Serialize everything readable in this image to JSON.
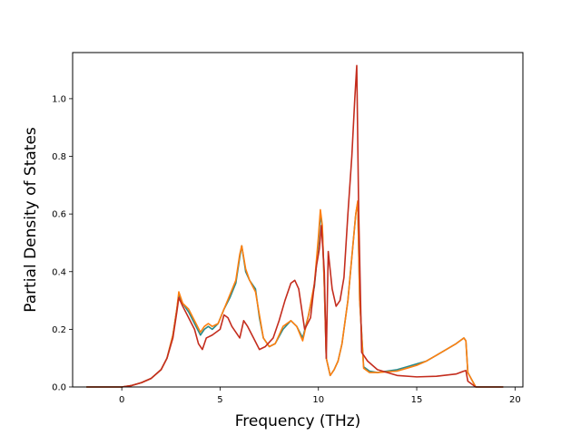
{
  "chart_data": {
    "type": "line",
    "title": "",
    "xlabel": "Frequency (THz)",
    "ylabel": "Partial Density of States",
    "xlim": [
      -2.5,
      20.4
    ],
    "ylim": [
      0.0,
      1.16
    ],
    "xticks": [
      0,
      5,
      10,
      15,
      20
    ],
    "yticks": [
      0.0,
      0.2,
      0.4,
      0.6,
      0.8,
      1.0
    ],
    "xtick_labels": [
      "0",
      "5",
      "10",
      "15",
      "20"
    ],
    "ytick_labels": [
      "0.0",
      "0.2",
      "0.4",
      "0.6",
      "0.8",
      "1.0"
    ],
    "grid": false,
    "legend": "none",
    "series": [
      {
        "color": "#2a8a8a",
        "x": [
          -1.8,
          0,
          0.5,
          1,
          1.5,
          2,
          2.3,
          2.6,
          2.8,
          2.9,
          3.1,
          3.4,
          3.7,
          4.0,
          4.2,
          4.4,
          4.6,
          4.9,
          5.2,
          5.5,
          5.8,
          6.0,
          6.1,
          6.3,
          6.5,
          6.8,
          7.0,
          7.2,
          7.5,
          7.8,
          8.2,
          8.6,
          8.9,
          9.2,
          9.5,
          9.8,
          10.0,
          10.1,
          10.2,
          10.3,
          10.4,
          10.6,
          10.8,
          11.0,
          11.2,
          11.5,
          11.7,
          11.9,
          12.0,
          12.1,
          12.3,
          12.6,
          13,
          14,
          14.5,
          15,
          15.5,
          16,
          16.5,
          17,
          17.4,
          17.5,
          17.6,
          18,
          19.4
        ],
        "y": [
          0,
          0,
          0.005,
          0.015,
          0.03,
          0.06,
          0.1,
          0.18,
          0.27,
          0.32,
          0.29,
          0.26,
          0.22,
          0.18,
          0.2,
          0.21,
          0.2,
          0.22,
          0.27,
          0.31,
          0.36,
          0.45,
          0.49,
          0.4,
          0.37,
          0.34,
          0.24,
          0.17,
          0.14,
          0.15,
          0.2,
          0.23,
          0.21,
          0.17,
          0.25,
          0.35,
          0.5,
          0.6,
          0.55,
          0.35,
          0.1,
          0.04,
          0.06,
          0.09,
          0.15,
          0.3,
          0.45,
          0.6,
          0.64,
          0.3,
          0.07,
          0.055,
          0.05,
          0.06,
          0.07,
          0.08,
          0.09,
          0.11,
          0.13,
          0.15,
          0.17,
          0.16,
          0.05,
          0.0,
          0.0
        ]
      },
      {
        "color": "#ff7f0e",
        "x": [
          -1.8,
          0,
          0.5,
          1,
          1.5,
          2,
          2.3,
          2.6,
          2.8,
          2.9,
          3.1,
          3.4,
          3.7,
          4.0,
          4.2,
          4.4,
          4.6,
          4.9,
          5.2,
          5.5,
          5.8,
          6.0,
          6.1,
          6.3,
          6.5,
          6.8,
          7.0,
          7.2,
          7.5,
          7.8,
          8.2,
          8.6,
          8.9,
          9.2,
          9.5,
          9.8,
          10.0,
          10.1,
          10.2,
          10.3,
          10.4,
          10.6,
          10.8,
          11.0,
          11.2,
          11.5,
          11.7,
          11.9,
          12.0,
          12.1,
          12.3,
          12.6,
          13,
          14,
          14.5,
          15,
          15.5,
          16,
          16.5,
          17,
          17.4,
          17.5,
          17.6,
          18,
          19.4
        ],
        "y": [
          0,
          0,
          0.005,
          0.015,
          0.03,
          0.06,
          0.1,
          0.18,
          0.27,
          0.33,
          0.29,
          0.27,
          0.23,
          0.19,
          0.21,
          0.22,
          0.21,
          0.22,
          0.27,
          0.32,
          0.37,
          0.46,
          0.49,
          0.41,
          0.37,
          0.33,
          0.25,
          0.17,
          0.14,
          0.15,
          0.21,
          0.23,
          0.21,
          0.16,
          0.25,
          0.36,
          0.52,
          0.615,
          0.56,
          0.35,
          0.1,
          0.04,
          0.06,
          0.09,
          0.15,
          0.3,
          0.45,
          0.6,
          0.645,
          0.3,
          0.065,
          0.05,
          0.05,
          0.055,
          0.065,
          0.075,
          0.09,
          0.11,
          0.13,
          0.15,
          0.17,
          0.16,
          0.05,
          0.0,
          0.0
        ]
      },
      {
        "color": "#c42d1e",
        "x": [
          -1.8,
          0,
          0.5,
          1,
          1.5,
          2,
          2.3,
          2.6,
          2.8,
          2.9,
          3.1,
          3.4,
          3.7,
          3.9,
          4.1,
          4.3,
          4.6,
          5.0,
          5.2,
          5.4,
          5.6,
          5.8,
          6.0,
          6.2,
          6.4,
          6.7,
          7.0,
          7.3,
          7.7,
          8.0,
          8.3,
          8.6,
          8.8,
          9.0,
          9.3,
          9.6,
          9.9,
          10.05,
          10.15,
          10.3,
          10.4,
          10.5,
          10.7,
          10.9,
          11.1,
          11.3,
          11.5,
          11.7,
          11.85,
          11.95,
          12.05,
          12.2,
          12.5,
          13,
          14,
          15,
          16,
          17,
          17.4,
          17.5,
          17.6,
          18,
          19.4
        ],
        "y": [
          0,
          0,
          0.005,
          0.015,
          0.03,
          0.06,
          0.1,
          0.17,
          0.26,
          0.31,
          0.28,
          0.24,
          0.2,
          0.15,
          0.13,
          0.17,
          0.18,
          0.2,
          0.25,
          0.24,
          0.21,
          0.19,
          0.17,
          0.23,
          0.21,
          0.17,
          0.13,
          0.14,
          0.17,
          0.23,
          0.3,
          0.36,
          0.37,
          0.34,
          0.2,
          0.24,
          0.42,
          0.48,
          0.56,
          0.4,
          0.1,
          0.47,
          0.34,
          0.28,
          0.3,
          0.38,
          0.6,
          0.8,
          1.0,
          1.115,
          0.6,
          0.12,
          0.09,
          0.06,
          0.04,
          0.035,
          0.037,
          0.045,
          0.055,
          0.057,
          0.02,
          0.0,
          0.0
        ]
      }
    ]
  }
}
